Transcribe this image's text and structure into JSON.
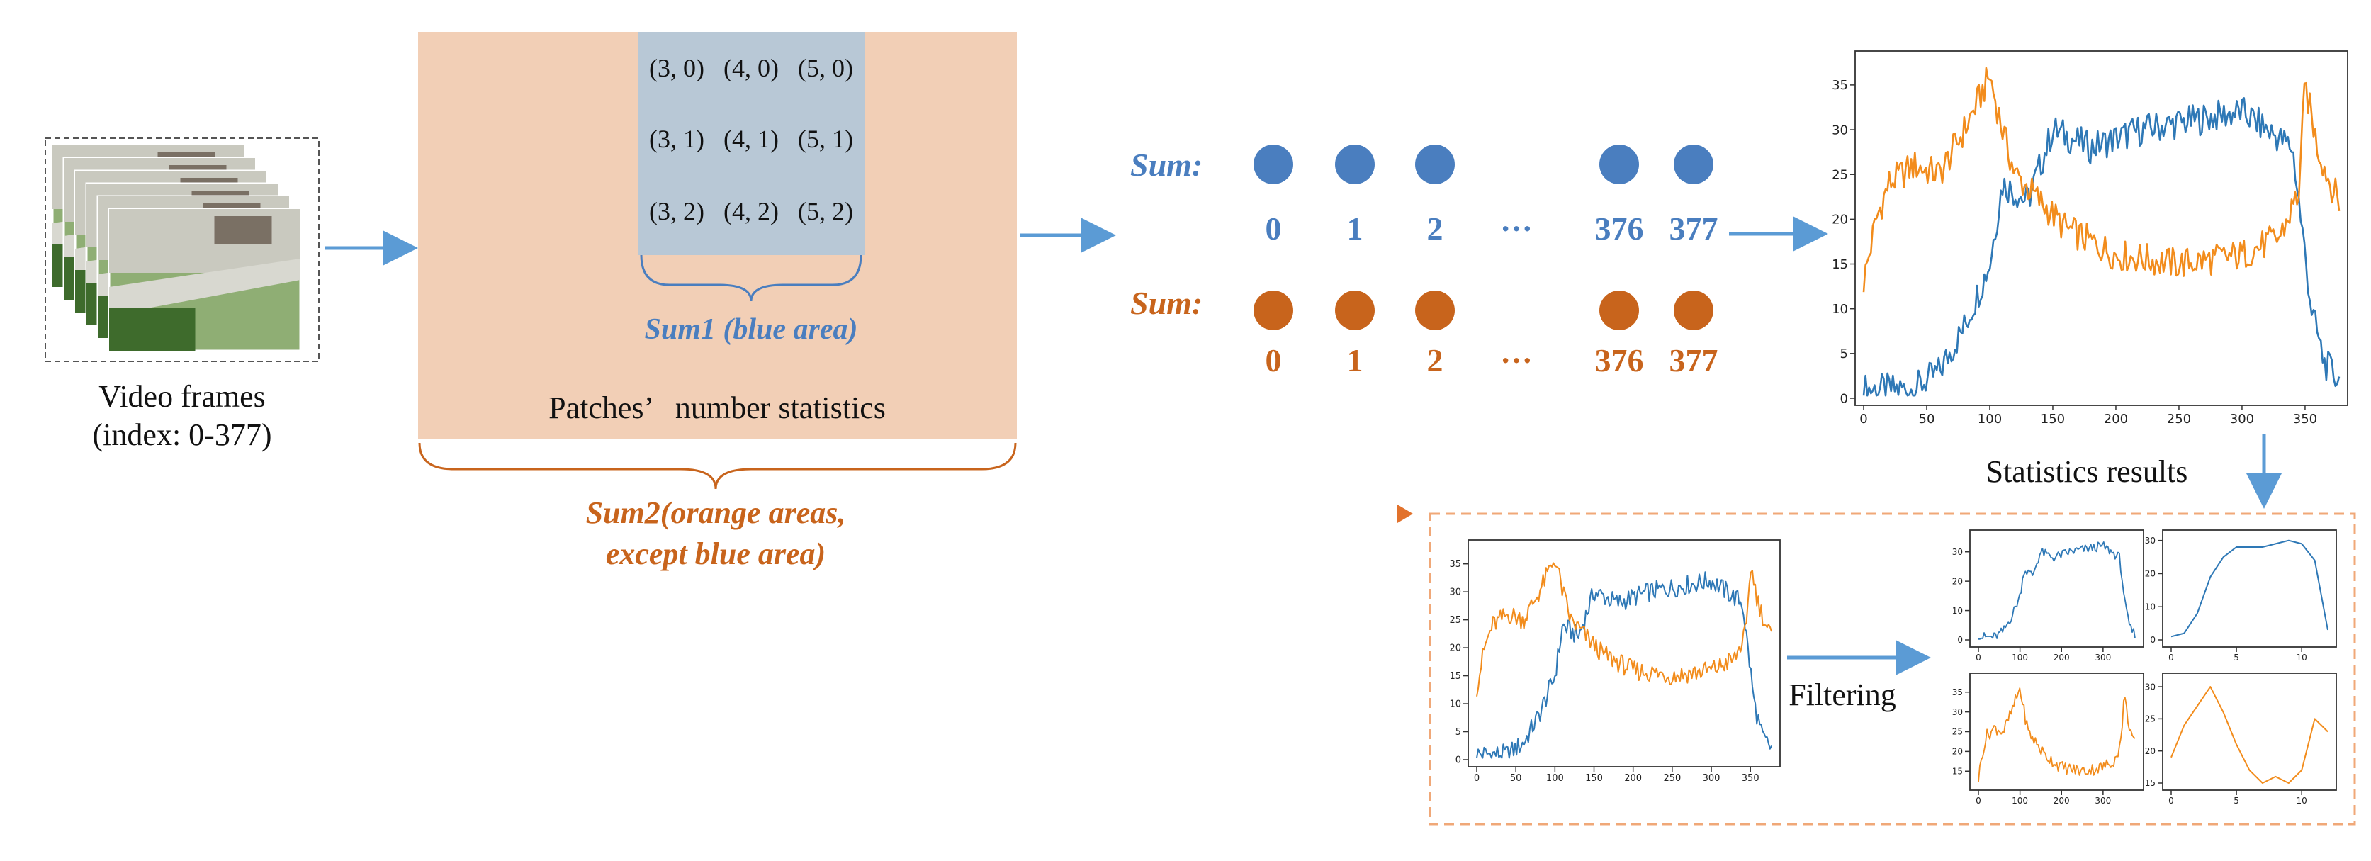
{
  "video": {
    "caption_line1": "Video frames",
    "caption_line2": "(index: 0-377)"
  },
  "patch_panel": {
    "cells": [
      [
        "(3, 0)",
        "(4, 0)",
        "(5, 0)"
      ],
      [
        "(3, 1)",
        "(4, 1)",
        "(5, 1)"
      ],
      [
        "(3, 2)",
        "(4, 2)",
        "(5, 2)"
      ]
    ],
    "sum1_label": "Sum1 (blue area)",
    "stats_label": "Patches’   number statistics",
    "sum2_line1": "Sum2(orange areas,",
    "sum2_line2": "except blue area)"
  },
  "sequences": {
    "blue": {
      "label": "Sum:",
      "indices": [
        "0",
        "1",
        "2",
        "···",
        "376",
        "377"
      ]
    },
    "orange": {
      "label": "Sum:",
      "indices": [
        "0",
        "1",
        "2",
        "···",
        "376",
        "377"
      ]
    }
  },
  "colors": {
    "blue": "#4a7ebf",
    "orange": "#c8641c",
    "series_blue": "#2e78b6",
    "series_orange": "#f28c1c",
    "peach": "#f2cfb6",
    "patch_blue": "#b8c8d6",
    "arrow": "#5b9bd5",
    "dash_orange": "#f0a878"
  },
  "statistics_caption": "Statistics results",
  "filtering_label": "Filtering",
  "chart_data": [
    {
      "type": "line",
      "ylim": [
        0,
        38
      ],
      "xlim": [
        0,
        377
      ],
      "xticks": [
        "0",
        "50",
        "100",
        "150",
        "200",
        "250",
        "300",
        "350"
      ],
      "yticks": [
        "0",
        "5",
        "10",
        "15",
        "20",
        "25",
        "30",
        "35"
      ],
      "series": [
        {
          "color": "blue",
          "x": [
            0,
            40,
            60,
            80,
            100,
            110,
            130,
            150,
            180,
            220,
            260,
            300,
            320,
            340,
            355,
            365,
            377
          ],
          "values": [
            1,
            1,
            3,
            8,
            15,
            24,
            22,
            30,
            28,
            30,
            31,
            32,
            30,
            28,
            10,
            4,
            2
          ]
        },
        {
          "color": "orange",
          "x": [
            0,
            10,
            20,
            40,
            60,
            80,
            100,
            110,
            120,
            140,
            160,
            200,
            250,
            300,
            330,
            345,
            350,
            360,
            370,
            377
          ],
          "values": [
            13,
            20,
            24,
            26,
            25,
            30,
            36,
            30,
            25,
            22,
            19,
            16,
            15,
            16,
            18,
            23,
            35,
            28,
            24,
            22
          ]
        }
      ]
    },
    {
      "type": "line",
      "ylim": [
        0,
        38
      ],
      "xlim": [
        0,
        377
      ],
      "xticks": [
        "0",
        "50",
        "100",
        "150",
        "200",
        "250",
        "300",
        "350"
      ],
      "yticks": [
        "0",
        "5",
        "10",
        "15",
        "20",
        "25",
        "30",
        "35"
      ],
      "series": [
        {
          "color": "blue",
          "x": [
            0,
            40,
            60,
            80,
            100,
            110,
            130,
            150,
            180,
            220,
            260,
            300,
            320,
            340,
            355,
            365,
            377
          ],
          "values": [
            1,
            1,
            3,
            8,
            15,
            24,
            22,
            30,
            28,
            30,
            31,
            32,
            30,
            28,
            10,
            4,
            2
          ]
        },
        {
          "color": "orange",
          "x": [
            0,
            10,
            20,
            40,
            60,
            80,
            100,
            110,
            120,
            140,
            160,
            200,
            250,
            300,
            330,
            345,
            350,
            360,
            370,
            377
          ],
          "values": [
            13,
            20,
            24,
            26,
            25,
            30,
            36,
            30,
            25,
            22,
            19,
            16,
            15,
            16,
            18,
            23,
            35,
            28,
            24,
            22
          ]
        }
      ]
    },
    {
      "type": "line",
      "ylim": [
        0,
        35
      ],
      "xlim": [
        0,
        377
      ],
      "xticks": [
        "0",
        "100",
        "200",
        "300"
      ],
      "yticks": [
        "0",
        "10",
        "20",
        "30"
      ],
      "series": [
        {
          "color": "blue",
          "x": [
            0,
            40,
            60,
            80,
            100,
            110,
            130,
            150,
            180,
            220,
            260,
            300,
            320,
            340,
            355,
            365,
            377
          ],
          "values": [
            1,
            1,
            3,
            8,
            15,
            24,
            22,
            30,
            28,
            30,
            31,
            32,
            30,
            28,
            10,
            4,
            2
          ]
        }
      ]
    },
    {
      "type": "line",
      "ylim": [
        0,
        31
      ],
      "xlim": [
        0,
        12
      ],
      "xticks": [
        "0",
        "5",
        "10"
      ],
      "yticks": [
        "0",
        "10",
        "20",
        "30"
      ],
      "series": [
        {
          "color": "blue",
          "x": [
            0,
            1,
            2,
            3,
            4,
            5,
            6,
            7,
            8,
            9,
            10,
            11,
            12
          ],
          "values": [
            1,
            2,
            8,
            19,
            25,
            28,
            28,
            28,
            29,
            30,
            29,
            24,
            3
          ]
        }
      ]
    },
    {
      "type": "line",
      "ylim": [
        12,
        38
      ],
      "xlim": [
        0,
        377
      ],
      "xticks": [
        "0",
        "100",
        "200",
        "300"
      ],
      "yticks": [
        "15",
        "20",
        "25",
        "30",
        "35"
      ],
      "series": [
        {
          "color": "orange",
          "x": [
            0,
            10,
            20,
            40,
            60,
            80,
            100,
            110,
            120,
            140,
            160,
            200,
            250,
            300,
            330,
            345,
            350,
            360,
            370,
            377
          ],
          "values": [
            13,
            20,
            24,
            26,
            25,
            30,
            36,
            30,
            25,
            22,
            19,
            16,
            15,
            16,
            18,
            23,
            35,
            28,
            24,
            22
          ]
        }
      ]
    },
    {
      "type": "line",
      "ylim": [
        15,
        31
      ],
      "xlim": [
        0,
        12
      ],
      "xticks": [
        "0",
        "5",
        "10"
      ],
      "yticks": [
        "15",
        "20",
        "25",
        "30"
      ],
      "series": [
        {
          "color": "orange",
          "x": [
            0,
            1,
            2,
            3,
            4,
            5,
            6,
            7,
            8,
            9,
            10,
            11,
            12
          ],
          "values": [
            19,
            24,
            27,
            30,
            26,
            21,
            17,
            15,
            16,
            15,
            17,
            25,
            23
          ]
        }
      ]
    }
  ]
}
